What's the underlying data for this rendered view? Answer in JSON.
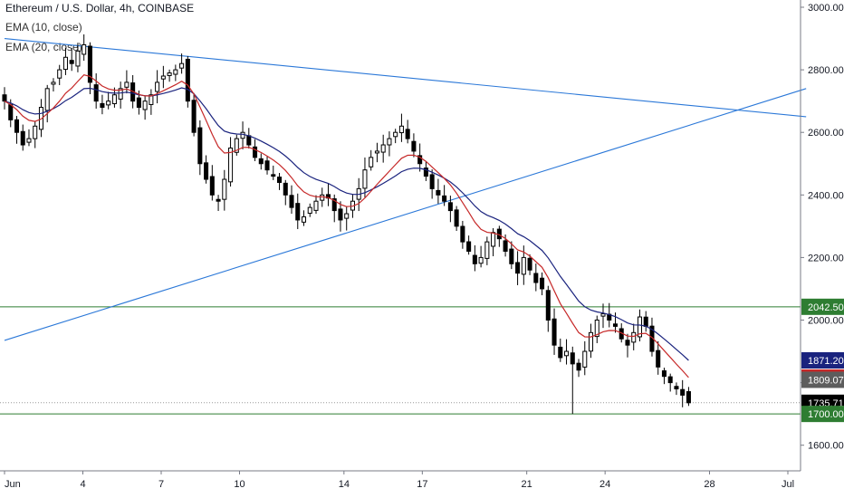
{
  "header": {
    "symbol_line": "Ethereum / U.S. Dollar, 4h, COINBASE",
    "indicator_1": "EMA (10, close)",
    "indicator_2": "EMA (20, close)"
  },
  "colors": {
    "up": "#ffffff",
    "down": "#000000",
    "wick": "#000000",
    "ema10": "#c62828",
    "ema20": "#1a237e",
    "trendline": "#2b78d8",
    "hline": "#2e7d32",
    "grid": "#e9e9ee",
    "axis": "#787b86"
  },
  "chart_data": {
    "type": "candlestick",
    "title": "Ethereum / U.S. Dollar, 4h, COINBASE",
    "xlabel": "",
    "ylabel": "",
    "ylim": [
      1520,
      3040
    ],
    "y_ticks": [
      "3000.00",
      "2800.00",
      "2600.00",
      "2400.00",
      "2200.00",
      "2000.00",
      "1800.00",
      "1600.00"
    ],
    "x_ticks": [
      {
        "label": "Jun",
        "day": 0
      },
      {
        "label": "4",
        "day": 3
      },
      {
        "label": "7",
        "day": 6
      },
      {
        "label": "10",
        "day": 9
      },
      {
        "label": "14",
        "day": 13
      },
      {
        "label": "17",
        "day": 16
      },
      {
        "label": "21",
        "day": 20
      },
      {
        "label": "24",
        "day": 23
      },
      {
        "label": "28",
        "day": 27
      },
      {
        "label": "Jul",
        "day": 30
      }
    ],
    "x_start_day": 0.0,
    "x_end_day": 30.7,
    "closes": [
      2700,
      2640,
      2600,
      2560,
      2580,
      2620,
      2680,
      2740,
      2760,
      2800,
      2840,
      2820,
      2860,
      2880,
      2760,
      2700,
      2680,
      2700,
      2720,
      2740,
      2760,
      2700,
      2680,
      2700,
      2720,
      2760,
      2780,
      2790,
      2800,
      2820,
      2700,
      2600,
      2500,
      2450,
      2400,
      2380,
      2450,
      2550,
      2580,
      2600,
      2560,
      2520,
      2500,
      2480,
      2460,
      2440,
      2400,
      2360,
      2320,
      2330,
      2360,
      2380,
      2400,
      2390,
      2350,
      2320,
      2340,
      2380,
      2420,
      2480,
      2520,
      2540,
      2560,
      2580,
      2600,
      2620,
      2580,
      2540,
      2500,
      2460,
      2420,
      2400,
      2380,
      2350,
      2300,
      2250,
      2220,
      2180,
      2200,
      2250,
      2280,
      2260,
      2220,
      2180,
      2150,
      2200,
      2160,
      2120,
      2100,
      2000,
      1920,
      1880,
      1900,
      1860,
      1840,
      1900,
      1960,
      2000,
      2020,
      2000,
      1980,
      1940,
      1920,
      1960,
      2010,
      1980,
      1900,
      1850,
      1820,
      1800,
      1780,
      1760,
      1735.71
    ],
    "ema_10_last": 1816.43,
    "ema_20_last": 1871.2,
    "price_labels": [
      {
        "value": 2042.5,
        "label": "2042.50",
        "color": "#2e7d32"
      },
      {
        "value": 1871.2,
        "label": "1871.20",
        "color": "#1a237e"
      },
      {
        "value": 1816.43,
        "label": "1816.43",
        "color": "#c62828"
      },
      {
        "value": 1809.07,
        "label": "1809.07",
        "color": "#5d5d5d"
      },
      {
        "value": 1735.71,
        "label": "1735.71",
        "color": "#000000"
      },
      {
        "value": 1700.0,
        "label": "1700.00",
        "color": "#2e7d32"
      }
    ],
    "horizontal_lines": [
      2042.5,
      1700.0
    ],
    "trendlines": [
      {
        "p1": [
          0.0,
          2900
        ],
        "p2": [
          30.7,
          2650
        ]
      },
      {
        "p1": [
          0.0,
          1935
        ],
        "p2": [
          30.7,
          2740
        ]
      }
    ],
    "grid": false,
    "legend": "top-left"
  }
}
